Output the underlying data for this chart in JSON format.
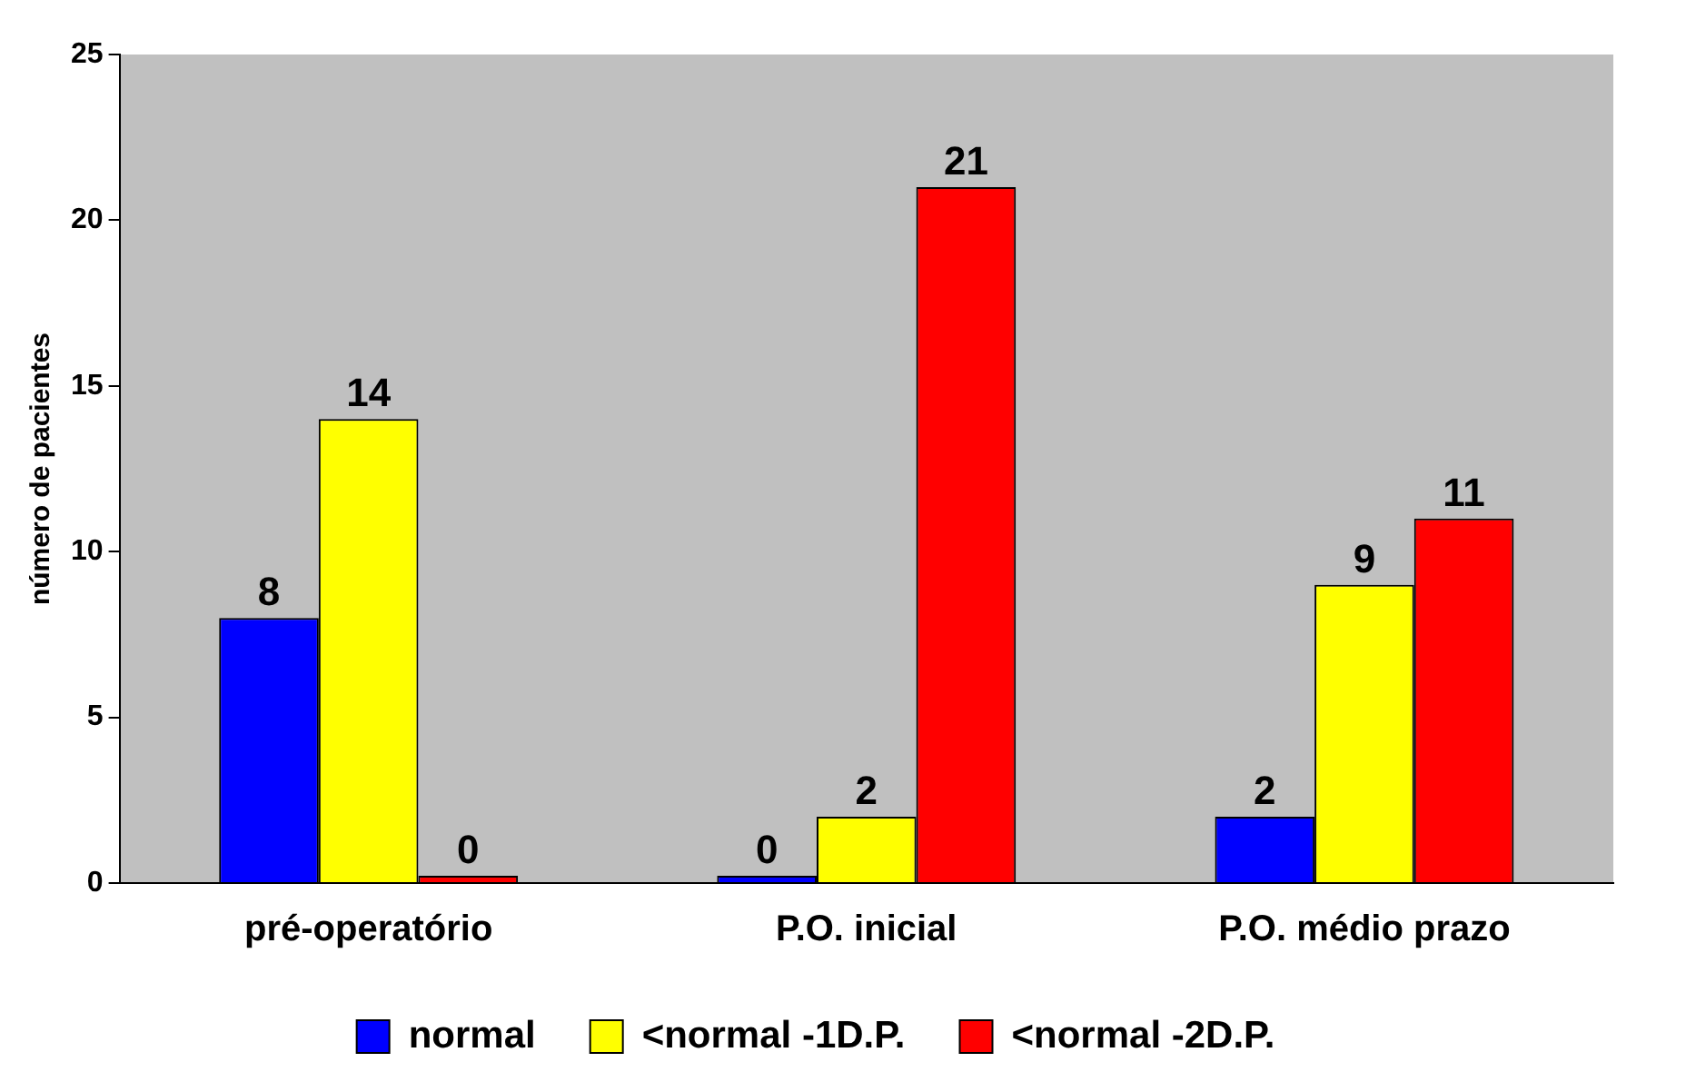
{
  "chart_data": {
    "type": "bar",
    "ylabel": "número de pacientes",
    "categories": [
      "pré-operatório",
      "P.O. inicial",
      "P.O. médio prazo"
    ],
    "series": [
      {
        "name": "normal",
        "color": "#0000ff",
        "values": [
          8,
          0,
          2
        ]
      },
      {
        "name": "<normal -1D.P.",
        "color": "#ffff00",
        "values": [
          14,
          2,
          9
        ]
      },
      {
        "name": "<normal -2D.P.",
        "color": "#ff0000",
        "values": [
          0,
          21,
          11
        ]
      }
    ],
    "ylim": [
      0,
      25
    ],
    "yticks": [
      0,
      5,
      10,
      15,
      20,
      25
    ],
    "grid": false,
    "legend": "bottom",
    "data_labels": true
  }
}
